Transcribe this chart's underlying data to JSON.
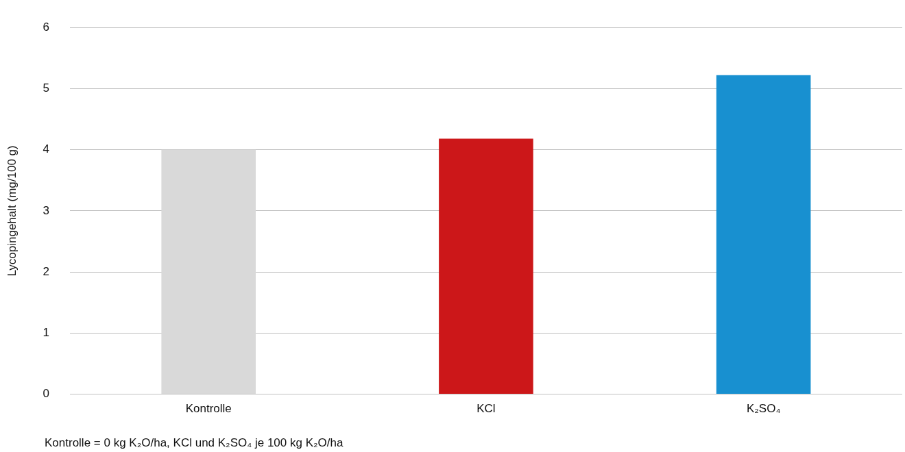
{
  "chart_data": {
    "type": "bar",
    "ylabel": "Lycopingehalt (mg/100 g)",
    "categories": [
      "Kontrolle",
      "KCl",
      "K₂SO₄"
    ],
    "values": [
      4.0,
      4.18,
      5.22
    ],
    "colors": [
      "#d9d9d9",
      "#cc1719",
      "#1890d0"
    ],
    "ylim": [
      0,
      6
    ],
    "yticks": [
      0,
      1,
      2,
      3,
      4,
      5,
      6
    ],
    "grid": "y",
    "legend": false,
    "annotations": [
      "Kontrolle = 0 kg K₂O/ha, KCl und K₂SO₄ je 100 kg K₂O/ha"
    ]
  }
}
